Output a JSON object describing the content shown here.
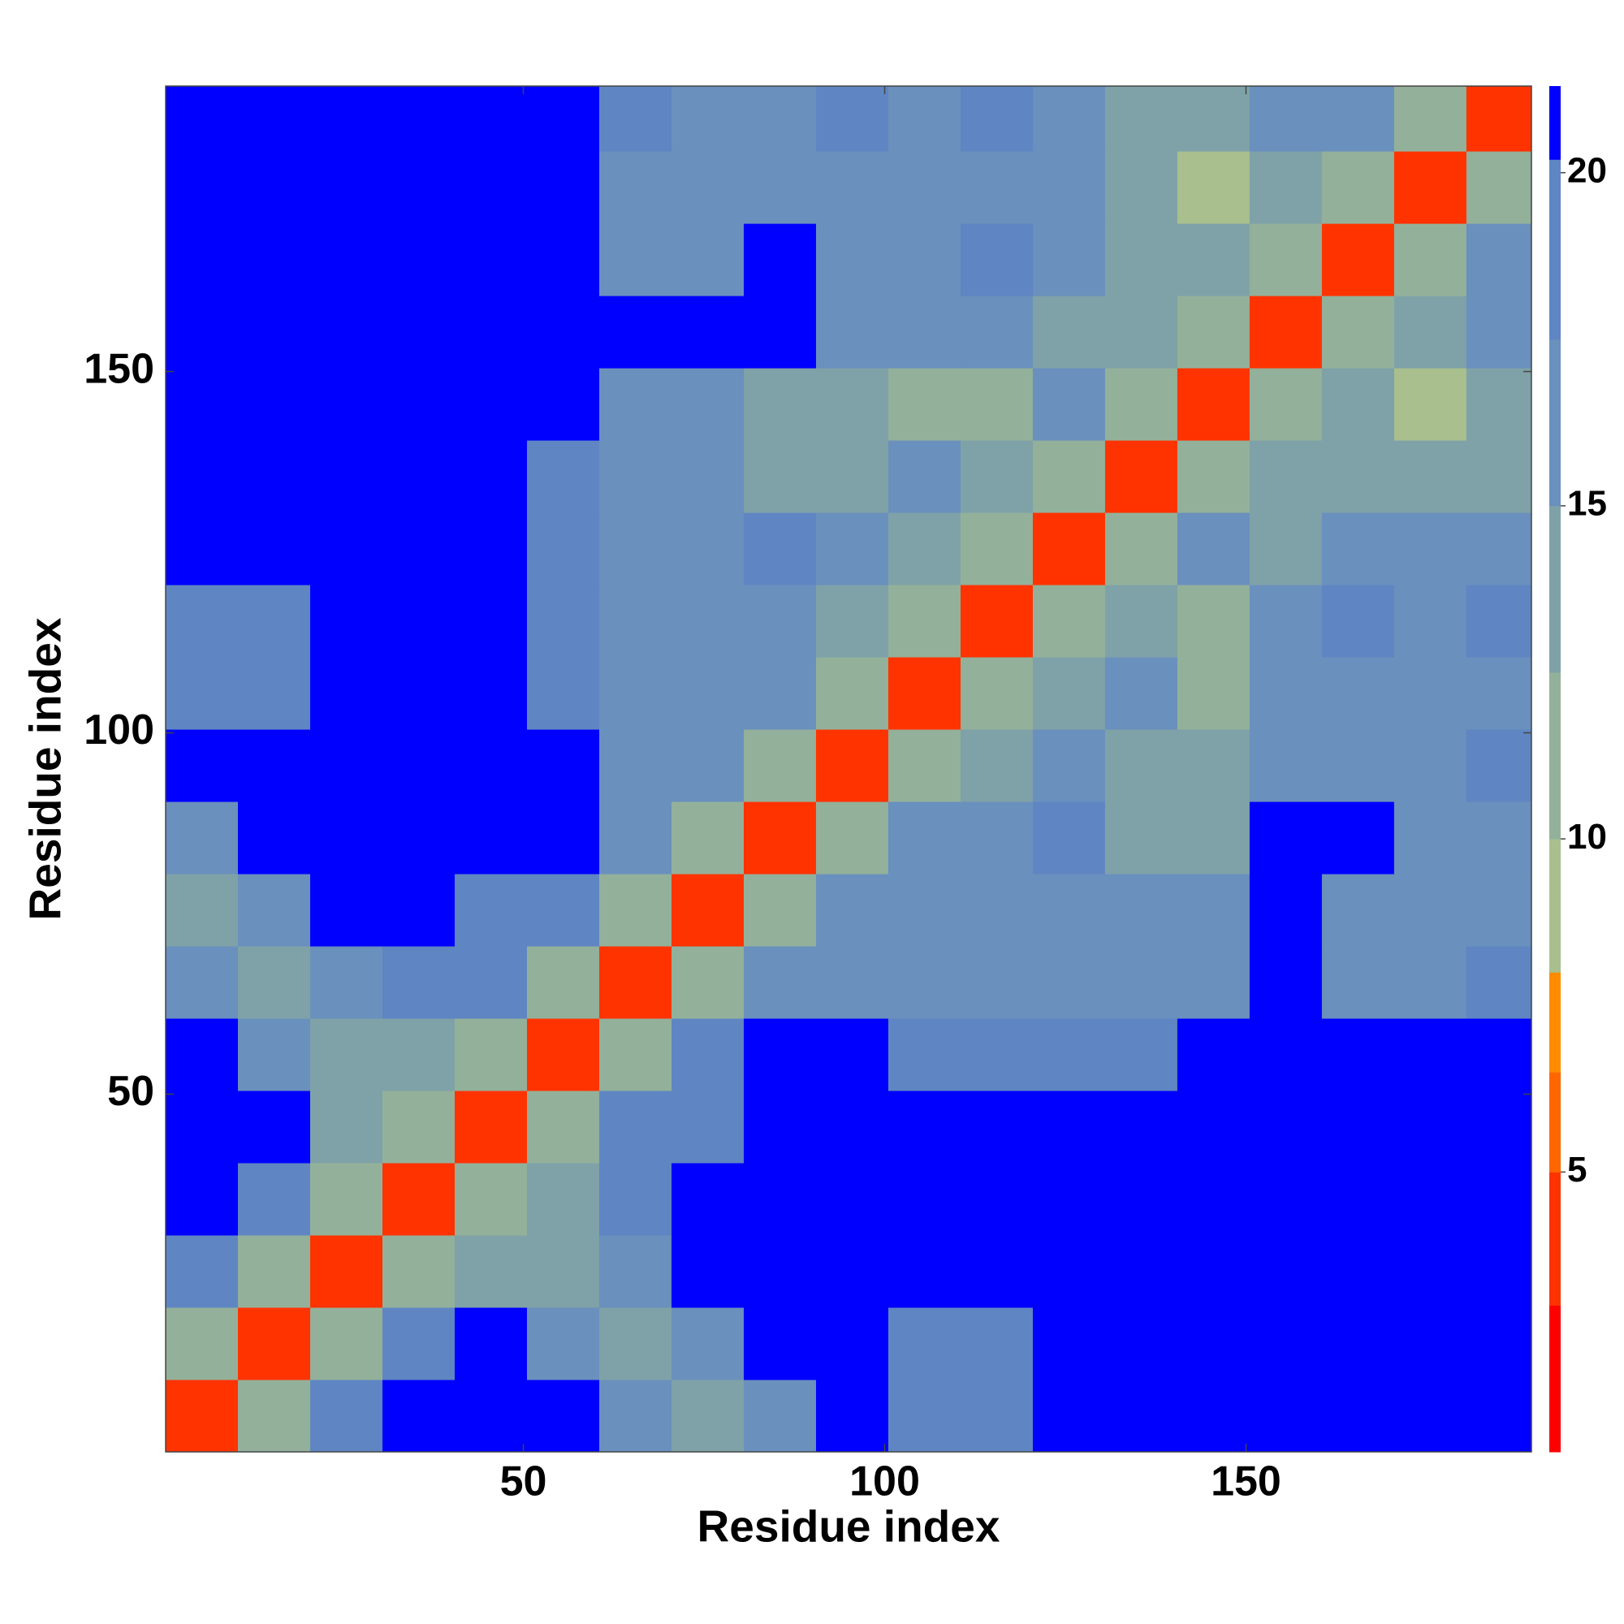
{
  "chart_data": {
    "type": "heatmap",
    "xlabel": "Residue index",
    "ylabel": "Residue index",
    "x": [
      5.5,
      15.5,
      25.5,
      35.5,
      45.5,
      55.5,
      65.5,
      75.5,
      85.5,
      95.5,
      105.5,
      115.5,
      125.5,
      135.5,
      145.5,
      155.5,
      165.5,
      175.5,
      185.5
    ],
    "y": [
      5.5,
      15.5,
      25.5,
      35.5,
      45.5,
      55.5,
      65.5,
      75.5,
      85.5,
      95.5,
      105.5,
      115.5,
      125.5,
      135.5,
      145.5,
      155.5,
      165.5,
      175.5,
      185.5
    ],
    "z": [
      [
        4,
        12,
        19,
        21,
        21,
        21,
        15,
        13,
        15,
        21,
        20,
        20,
        21,
        21,
        21,
        21,
        21,
        21,
        21
      ],
      [
        12,
        4,
        12,
        19,
        21,
        16,
        13,
        15,
        21,
        21,
        20,
        20,
        21,
        21,
        21,
        21,
        21,
        21,
        21
      ],
      [
        19,
        12,
        4,
        12,
        14,
        13,
        16,
        21,
        21,
        21,
        21,
        21,
        21,
        21,
        21,
        21,
        21,
        21,
        21
      ],
      [
        21,
        19,
        12,
        4,
        12,
        14,
        19,
        21,
        21,
        21,
        21,
        21,
        21,
        21,
        21,
        21,
        21,
        21,
        21
      ],
      [
        21,
        21,
        14,
        12,
        4,
        12,
        18,
        19,
        21,
        21,
        21,
        21,
        21,
        21,
        21,
        21,
        21,
        21,
        21
      ],
      [
        21,
        16,
        13,
        14,
        12,
        4,
        12,
        19,
        21,
        21,
        19,
        18,
        20,
        18,
        21,
        21,
        21,
        21,
        21
      ],
      [
        15,
        13,
        16,
        19,
        18,
        12,
        4,
        12,
        16,
        17,
        17,
        17,
        17,
        16,
        15,
        21,
        17,
        17,
        18
      ],
      [
        13,
        15,
        21,
        21,
        19,
        19,
        12,
        4,
        12,
        15,
        15,
        16,
        17,
        15,
        16,
        21,
        16,
        16,
        17
      ],
      [
        15,
        21,
        21,
        21,
        21,
        21,
        16,
        12,
        4,
        12,
        15,
        16,
        19,
        14,
        13,
        21,
        21,
        17,
        16
      ],
      [
        21,
        21,
        21,
        21,
        21,
        21,
        17,
        15,
        12,
        4,
        12,
        14,
        15,
        14,
        13,
        16,
        15,
        16,
        18
      ],
      [
        20,
        20,
        21,
        21,
        21,
        19,
        17,
        15,
        15,
        12,
        4,
        12,
        14,
        15,
        12,
        15,
        16,
        16,
        17
      ],
      [
        20,
        20,
        21,
        21,
        21,
        18,
        17,
        16,
        16,
        14,
        12,
        4,
        12,
        14,
        10,
        17,
        18,
        17,
        18
      ],
      [
        21,
        21,
        21,
        21,
        21,
        20,
        17,
        17,
        19,
        15,
        14,
        12,
        4,
        12,
        15,
        13,
        15,
        15,
        16
      ],
      [
        21,
        21,
        21,
        21,
        21,
        18,
        16,
        15,
        14,
        14,
        15,
        14,
        12,
        4,
        12,
        14,
        14,
        13,
        14
      ],
      [
        21,
        21,
        21,
        21,
        21,
        21,
        15,
        16,
        13,
        13,
        12,
        10,
        15,
        12,
        4,
        12,
        13,
        8,
        14
      ],
      [
        21,
        21,
        21,
        21,
        21,
        21,
        21,
        21,
        21,
        16,
        15,
        17,
        13,
        14,
        12,
        4,
        12,
        14,
        16
      ],
      [
        21,
        21,
        21,
        21,
        21,
        21,
        17,
        16,
        21,
        15,
        16,
        18,
        15,
        14,
        13,
        12,
        4,
        12,
        15
      ],
      [
        21,
        21,
        21,
        21,
        21,
        21,
        17,
        16,
        17,
        16,
        16,
        17,
        15,
        13,
        8,
        14,
        12,
        4,
        12
      ],
      [
        21,
        21,
        21,
        21,
        21,
        21,
        18,
        17,
        16,
        18,
        17,
        18,
        16,
        14,
        14,
        16,
        15,
        12,
        4
      ]
    ],
    "xlim": [
      0.5,
      189.5
    ],
    "ylim": [
      0.5,
      189.5
    ],
    "xticks": [
      50,
      100,
      150
    ],
    "yticks": [
      50,
      100,
      150
    ],
    "clim": [
      0.8,
      21.3
    ],
    "cticks": [
      5,
      10,
      15,
      20
    ],
    "color_bounds": [
      0.8,
      3,
      5,
      6.5,
      8,
      10,
      12.5,
      15,
      17.5,
      20.2,
      21.3
    ],
    "colors": [
      "#ff0000",
      "#ff3300",
      "#ff6600",
      "#ff8c00",
      "#a9bf8d",
      "#93b19a",
      "#7fa2a8",
      "#6a90bd",
      "#5f86c2",
      "#0000ff"
    ]
  }
}
